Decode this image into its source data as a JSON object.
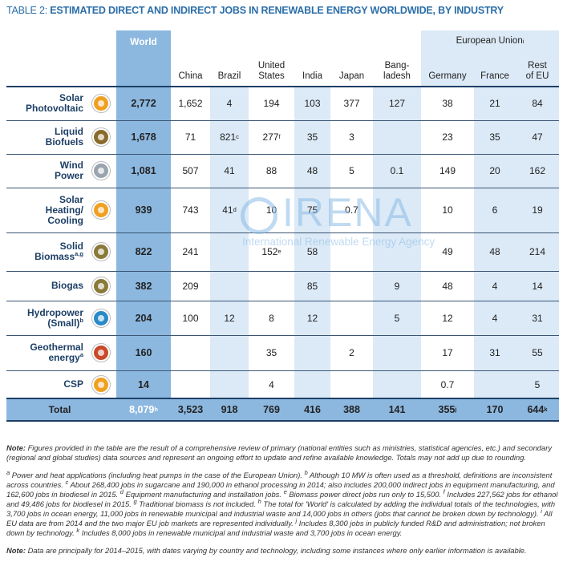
{
  "title_prefix": "TABLE 2:",
  "title": "ESTIMATED DIRECT AND INDIRECT JOBS IN RENEWABLE ENERGY WORLDWIDE, BY INDUSTRY",
  "table": {
    "group_header": {
      "text": "European Union",
      "sup": "i"
    },
    "columns": [
      [
        "World"
      ],
      [
        "China"
      ],
      [
        "Brazil"
      ],
      [
        "United",
        "States"
      ],
      [
        "India"
      ],
      [
        "Japan"
      ],
      [
        "Bang-",
        "ladesh"
      ],
      [
        "Germany"
      ],
      [
        "France"
      ],
      [
        "Rest",
        "of EU"
      ]
    ],
    "rows": [
      {
        "label": [
          "Solar",
          "Photovoltaic"
        ],
        "cells": [
          "2,772",
          "1,652",
          "4",
          "194",
          "103",
          "377",
          "127",
          "38",
          "21",
          "84"
        ]
      },
      {
        "label": [
          "Liquid",
          "Biofuels"
        ],
        "cells": [
          "1,678",
          "71",
          {
            "text": "821",
            "sup": "c"
          },
          {
            "text": "277",
            "sup": "f"
          },
          "35",
          "3",
          null,
          "23",
          "35",
          "47"
        ]
      },
      {
        "label": [
          "Wind",
          "Power"
        ],
        "cells": [
          "1,081",
          "507",
          "41",
          "88",
          "48",
          "5",
          "0.1",
          "149",
          "20",
          "162"
        ]
      },
      {
        "label": [
          "Solar",
          "Heating/",
          "Cooling"
        ],
        "cells": [
          "939",
          "743",
          {
            "text": "41",
            "sup": "d"
          },
          "10",
          "75",
          "0.7",
          null,
          "10",
          "6",
          "19"
        ]
      },
      {
        "label": [
          "Solid",
          "Biomass"
        ],
        "sup": "a,g",
        "cells": [
          "822",
          "241",
          null,
          {
            "text": "152",
            "sup": "e"
          },
          "58",
          null,
          null,
          "49",
          "48",
          "214"
        ]
      },
      {
        "label": [
          "Biogas"
        ],
        "cells": [
          "382",
          "209",
          null,
          null,
          "85",
          null,
          "9",
          "48",
          "4",
          "14"
        ]
      },
      {
        "label": [
          "Hydropower",
          "(Small)"
        ],
        "sup": "b",
        "cells": [
          "204",
          "100",
          "12",
          "8",
          "12",
          null,
          "5",
          "12",
          "4",
          "31"
        ]
      },
      {
        "label": [
          "Geothermal",
          "energy"
        ],
        "sup": "a",
        "cells": [
          "160",
          null,
          null,
          "35",
          null,
          "2",
          null,
          "17",
          "31",
          "55"
        ]
      },
      {
        "label": [
          "CSP"
        ],
        "cells": [
          "14",
          null,
          null,
          "4",
          null,
          null,
          null,
          "0.7",
          null,
          "5"
        ]
      }
    ],
    "total": {
      "label": [
        "Total"
      ],
      "cells": [
        {
          "text": "8,079",
          "sup": "h"
        },
        "3,523",
        "918",
        "769",
        "416",
        "388",
        "141",
        {
          "text": "355",
          "sup": "j"
        },
        "170",
        {
          "text": "644",
          "sup": "k"
        }
      ]
    }
  },
  "watermark": {
    "name": "IRENA",
    "subtitle": "International Renewable Energy Agency"
  },
  "note": {
    "label": "Note:",
    "text": "Figures provided in the table are the result of a comprehensive review of primary (national entities such as ministries, statistical agencies, etc.) and secondary (regional and global studies) data sources and represent an ongoing effort to update and refine available knowledge. Totals may not add up due to rounding."
  },
  "footnotes": [
    {
      "mark": "a",
      "text": "Power and heat applications (including heat pumps in the case of the European Union)."
    },
    {
      "mark": "b",
      "text": "Although 10 MW is often used as a threshold, definitions are inconsistent across countries."
    },
    {
      "mark": "c",
      "text": "About 268,400 jobs in sugarcane and 190,000 in ethanol processing in 2014; also includes 200,000 indirect jobs in equipment manufacturing, and 162,600 jobs in biodiesel in 2015."
    },
    {
      "mark": "d",
      "text": "Equipment manufacturing and installation jobs."
    },
    {
      "mark": "e",
      "text": "Biomass power direct jobs run only to 15,500."
    },
    {
      "mark": "f",
      "text": "Includes 227,562 jobs for ethanol and 49,486 jobs for biodiesel in 2015."
    },
    {
      "mark": "g",
      "text": "Traditional biomass is not included."
    },
    {
      "mark": "h",
      "text": "The total for 'World' is calculated by adding the individual totals of the technologies, with 3,700 jobs in ocean energy, 11,000 jobs in renewable municipal and industrial waste and 14,000 jobs in others (jobs that cannot be broken down by technology)."
    },
    {
      "mark": "i",
      "text": "All EU data are from 2014 and the two major EU job markets are represented individually."
    },
    {
      "mark": "j",
      "text": "Includes 8,300 jobs in publicly funded R&D and administration; not broken down by technology."
    },
    {
      "mark": "k",
      "text": "Includes 8,000 jobs in renewable municipal and industrial waste and 3,700 jobs in ocean energy."
    }
  ],
  "note2": {
    "label": "Note:",
    "text": "Data are principally for 2014–2015, with dates varying by country and technology, including some instances where only earlier information is available."
  }
}
